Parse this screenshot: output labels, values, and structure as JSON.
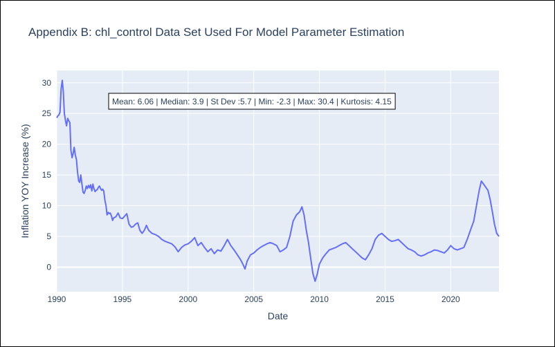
{
  "chart_data": {
    "type": "line",
    "title": "Appendix B: chl_control Data Set Used For Model Parameter Estimation",
    "xlabel": "Date",
    "ylabel": "Inflation YOY Increase (%)",
    "annotation": "Mean: 6.06 | Median: 3.9 | St Dev :5.7 | Min: -2.3 | Max: 30.4 | Kurtosis: 4.15",
    "xlim": [
      1990.0,
      2023.67
    ],
    "ylim": [
      -4.0,
      32.0
    ],
    "x_ticks": [
      1990,
      1995,
      2000,
      2005,
      2010,
      2015,
      2020
    ],
    "y_ticks": [
      0,
      5,
      10,
      15,
      20,
      25,
      30
    ],
    "grid": true,
    "line_color": "#636efa",
    "plot_bgcolor": "#e5ecf6",
    "series": [
      {
        "x": [
          1990.0,
          1990.08,
          1990.17,
          1990.25,
          1990.33,
          1990.42,
          1990.5,
          1990.58,
          1990.67,
          1990.75,
          1990.83,
          1990.92,
          1991.0,
          1991.08,
          1991.17,
          1991.25,
          1991.33,
          1991.42,
          1991.5,
          1991.58,
          1991.67,
          1991.75,
          1991.83,
          1991.92,
          1992.0,
          1992.08,
          1992.17,
          1992.25,
          1992.33,
          1992.42,
          1992.5,
          1992.58,
          1992.67,
          1992.75,
          1992.83,
          1992.92,
          1993.0,
          1993.08,
          1993.17,
          1993.25,
          1993.33,
          1993.42,
          1993.5,
          1993.58,
          1993.67,
          1993.75,
          1993.83,
          1993.92,
          1994.0,
          1994.08,
          1994.17,
          1994.25,
          1994.33,
          1994.5,
          1994.67,
          1994.83,
          1995.0,
          1995.17,
          1995.33,
          1995.5,
          1995.67,
          1995.83,
          1996.0,
          1996.17,
          1996.33,
          1996.5,
          1996.67,
          1996.83,
          1997.0,
          1997.25,
          1997.5,
          1997.75,
          1998.0,
          1998.25,
          1998.5,
          1998.75,
          1999.0,
          1999.25,
          1999.5,
          1999.75,
          2000.0,
          2000.25,
          2000.5,
          2000.75,
          2001.0,
          2001.25,
          2001.5,
          2001.75,
          2002.0,
          2002.25,
          2002.5,
          2002.75,
          2003.0,
          2003.25,
          2003.5,
          2003.75,
          2004.0,
          2004.17,
          2004.33,
          2004.5,
          2004.75,
          2005.0,
          2005.25,
          2005.5,
          2005.75,
          2006.0,
          2006.25,
          2006.5,
          2006.75,
          2007.0,
          2007.25,
          2007.5,
          2007.75,
          2008.0,
          2008.25,
          2008.5,
          2008.67,
          2008.83,
          2009.0,
          2009.17,
          2009.33,
          2009.5,
          2009.67,
          2009.83,
          2010.0,
          2010.25,
          2010.5,
          2010.75,
          2011.0,
          2011.25,
          2011.5,
          2011.75,
          2012.0,
          2012.25,
          2012.5,
          2012.75,
          2013.0,
          2013.25,
          2013.5,
          2013.75,
          2014.0,
          2014.25,
          2014.5,
          2014.75,
          2015.0,
          2015.25,
          2015.5,
          2015.75,
          2016.0,
          2016.25,
          2016.5,
          2016.75,
          2017.0,
          2017.25,
          2017.5,
          2017.75,
          2018.0,
          2018.25,
          2018.5,
          2018.75,
          2019.0,
          2019.25,
          2019.5,
          2019.75,
          2020.0,
          2020.25,
          2020.5,
          2020.75,
          2021.0,
          2021.25,
          2021.5,
          2021.75,
          2022.0,
          2022.17,
          2022.33,
          2022.5,
          2022.67,
          2022.83,
          2023.0,
          2023.17,
          2023.33,
          2023.5,
          2023.67
        ],
        "y": [
          24.3,
          24.6,
          24.8,
          25.2,
          29.0,
          30.4,
          28.5,
          25.0,
          23.8,
          23.0,
          24.2,
          23.8,
          23.5,
          19.0,
          17.8,
          18.5,
          19.5,
          18.2,
          17.5,
          15.5,
          14.0,
          13.8,
          15.0,
          13.5,
          12.2,
          12.0,
          12.5,
          13.2,
          12.8,
          13.3,
          12.9,
          13.4,
          12.4,
          13.5,
          12.8,
          12.3,
          12.5,
          12.6,
          13.0,
          13.2,
          12.8,
          12.5,
          12.7,
          12.4,
          10.8,
          10.0,
          8.5,
          8.9,
          8.7,
          8.8,
          8.3,
          7.6,
          8.0,
          8.2,
          8.8,
          8.0,
          7.9,
          8.3,
          8.7,
          7.0,
          6.5,
          6.6,
          7.0,
          7.2,
          6.0,
          5.5,
          6.0,
          6.8,
          6.0,
          5.5,
          5.3,
          5.0,
          4.5,
          4.2,
          4.0,
          3.8,
          3.3,
          2.5,
          3.2,
          3.6,
          3.8,
          4.2,
          4.8,
          3.5,
          4.0,
          3.2,
          2.5,
          3.0,
          2.2,
          2.8,
          2.6,
          3.5,
          4.5,
          3.5,
          2.8,
          2.0,
          1.2,
          0.5,
          -0.3,
          1.0,
          2.0,
          2.3,
          2.8,
          3.2,
          3.5,
          3.8,
          4.0,
          3.8,
          3.5,
          2.5,
          2.8,
          3.2,
          5.0,
          7.5,
          8.5,
          9.0,
          9.8,
          8.5,
          6.0,
          4.0,
          1.5,
          -1.0,
          -2.3,
          -1.2,
          0.5,
          1.5,
          2.2,
          2.8,
          3.0,
          3.2,
          3.5,
          3.8,
          4.0,
          3.5,
          3.0,
          2.5,
          2.0,
          1.5,
          1.2,
          2.0,
          3.0,
          4.5,
          5.2,
          5.5,
          5.0,
          4.5,
          4.2,
          4.3,
          4.5,
          4.0,
          3.5,
          3.0,
          2.8,
          2.5,
          2.0,
          1.8,
          2.0,
          2.3,
          2.5,
          2.8,
          2.7,
          2.5,
          2.3,
          2.8,
          3.5,
          3.0,
          2.8,
          3.0,
          3.2,
          4.5,
          6.0,
          7.5,
          10.5,
          12.5,
          14.0,
          13.5,
          13.0,
          12.5,
          11.0,
          9.0,
          7.0,
          5.5,
          5.0
        ]
      }
    ]
  }
}
